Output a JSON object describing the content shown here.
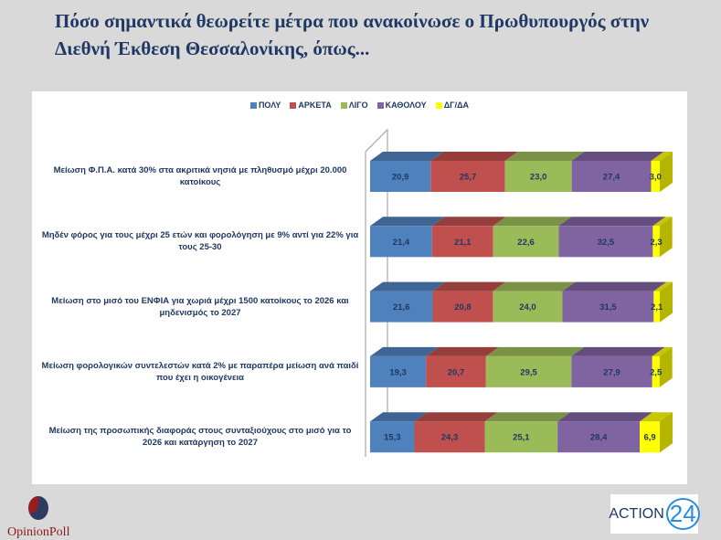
{
  "title": "Πόσο σημαντικά θεωρείτε μέτρα που ανακοίνωσε ο Πρωθυπουργός στην Διεθνή Έκθεση Θεσσαλονίκης, όπως...",
  "logos": {
    "left": "OpinionPoll",
    "right_text": "ACTION",
    "right_num": "24"
  },
  "chart_data": {
    "type": "bar",
    "orientation": "horizontal",
    "stacked": true,
    "style": "3d",
    "title": "Πόσο σημαντικά θεωρείτε μέτρα που ανακοίνωσε ο Πρωθυπουργός στην Διεθνή Έκθεση Θεσσαλονίκης, όπως...",
    "legend_position": "top",
    "xlim": [
      0,
      100
    ],
    "categories": [
      "Μείωση Φ.Π.Α. κατά 30% στα ακριτικά νησιά με πληθυσμό μέχρι 20.000 κατοίκους",
      "Μηδέν φόρος για τους μέχρι 25 ετών και φορολόγηση με 9% αντί για 22% για τους 25-30",
      "Μείωση στο μισό του ΕΝΦΙΑ για χωριά μέχρι 1500 κατοίκους το 2026 και μηδενισμός το 2027",
      "Μείωση φορολογικών συντελεστών κατά 2% με παραπέρα μείωση ανά παιδί που έχει η οικογένεια",
      "Μείωση της προσωπικής διαφοράς στους συνταξιούχους στο μισό για το 2026 και κατάργηση το 2027"
    ],
    "series": [
      {
        "name": "ΠΟΛΥ",
        "color": "#4f81bd",
        "values": [
          20.9,
          21.4,
          21.6,
          19.3,
          15.3
        ],
        "labels": [
          "20,9",
          "21,4",
          "21,6",
          "19,3",
          "15,3"
        ]
      },
      {
        "name": "ΑΡΚΕΤΑ",
        "color": "#c0504d",
        "values": [
          25.7,
          21.1,
          20.8,
          20.7,
          24.3
        ],
        "labels": [
          "25,7",
          "21,1",
          "20,8",
          "20,7",
          "24,3"
        ]
      },
      {
        "name": "ΛΙΓΟ",
        "color": "#9bbb59",
        "values": [
          23.0,
          22.6,
          24.0,
          29.5,
          25.1
        ],
        "labels": [
          "23,0",
          "22,6",
          "24,0",
          "29,5",
          "25,1"
        ]
      },
      {
        "name": "ΚΑΘΟΛΟΥ",
        "color": "#8064a2",
        "values": [
          27.4,
          32.5,
          31.5,
          27.9,
          28.4
        ],
        "labels": [
          "27,4",
          "32,5",
          "31,5",
          "27,9",
          "28,4"
        ]
      },
      {
        "name": "ΔΓ/ΔΑ",
        "color": "#ffff00",
        "values": [
          3.0,
          2.3,
          2.1,
          2.5,
          6.9
        ],
        "labels": [
          "3,0",
          "2,3",
          "2,1",
          "2,5",
          "6,9"
        ]
      }
    ]
  }
}
